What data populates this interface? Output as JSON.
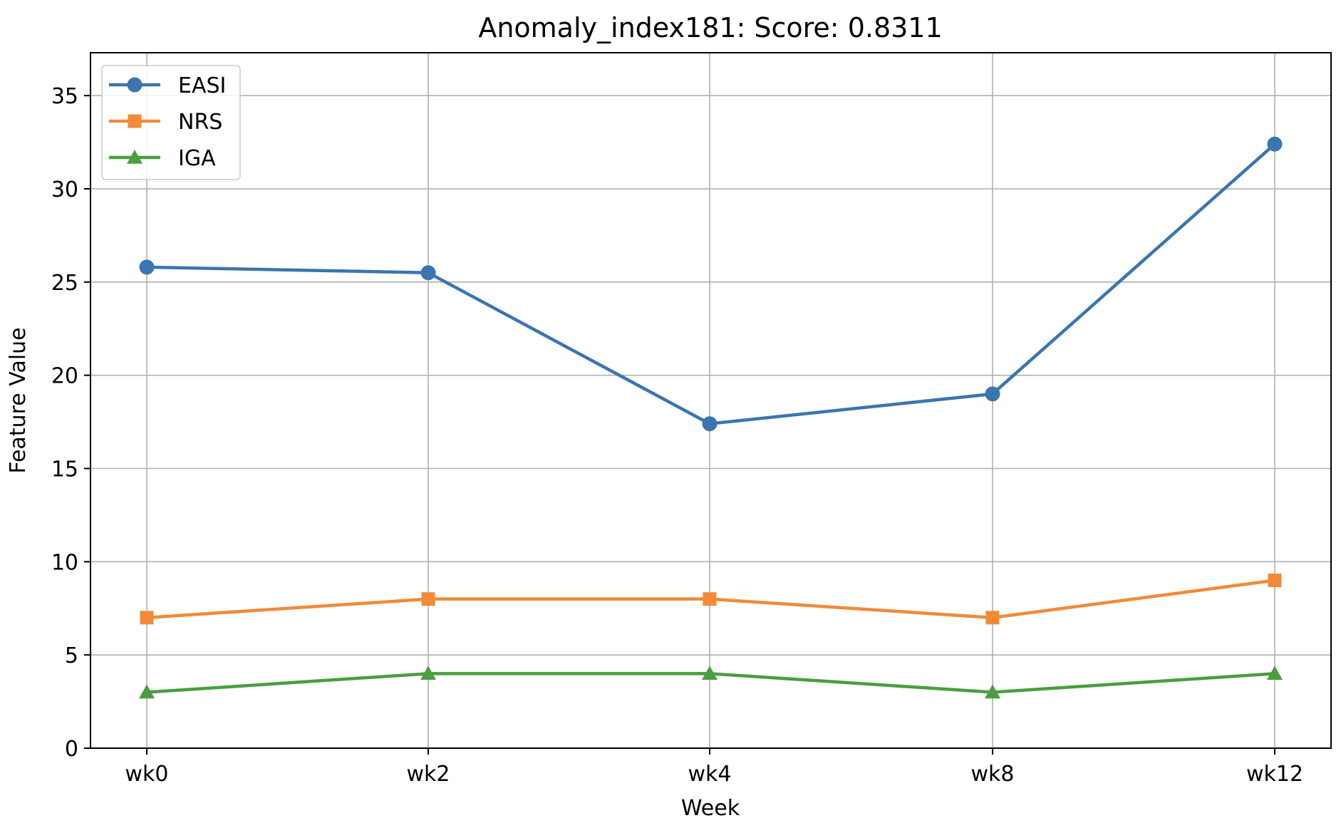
{
  "chart_data": {
    "type": "line",
    "title": "Anomaly_index181: Score: 0.8311",
    "xlabel": "Week",
    "ylabel": "Feature Value",
    "categories": [
      "wk0",
      "wk2",
      "wk4",
      "wk8",
      "wk12"
    ],
    "ylim": [
      0,
      37.3
    ],
    "yticks": [
      0,
      5,
      10,
      15,
      20,
      25,
      30,
      35
    ],
    "grid": true,
    "legend_position": "top-left",
    "series": [
      {
        "name": "EASI",
        "color": "#3a75b0",
        "marker": "circle",
        "values": [
          25.8,
          25.5,
          17.4,
          19.0,
          32.4
        ]
      },
      {
        "name": "NRS",
        "color": "#f28a38",
        "marker": "square",
        "values": [
          7,
          8,
          8,
          7,
          9
        ]
      },
      {
        "name": "IGA",
        "color": "#4a9e3f",
        "marker": "triangle",
        "values": [
          3,
          4,
          4,
          3,
          4
        ]
      }
    ]
  }
}
